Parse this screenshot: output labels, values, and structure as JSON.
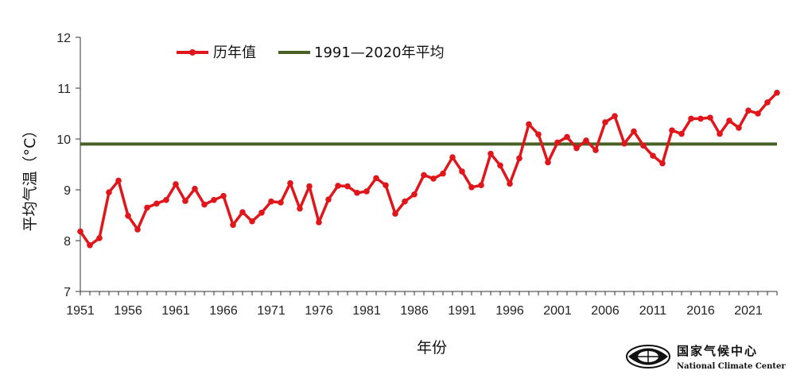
{
  "chart_data": {
    "type": "line",
    "title": "",
    "xlabel": "年份",
    "ylabel": "平均气温（°C）",
    "xlim": [
      1951,
      2024
    ],
    "ylim": [
      7,
      12
    ],
    "yticks": [
      "7",
      "8",
      "9",
      "10",
      "11",
      "12"
    ],
    "xticks": [
      "1951",
      "1956",
      "1961",
      "1966",
      "1971",
      "1976",
      "1981",
      "1986",
      "1991",
      "1996",
      "2001",
      "2006",
      "2011",
      "2016",
      "2021"
    ],
    "legend_position": "top-left",
    "grid": false,
    "series": [
      {
        "name": "历年值",
        "color": "#e0161b",
        "marker": "circle",
        "x": [
          1951,
          1952,
          1953,
          1954,
          1955,
          1956,
          1957,
          1958,
          1959,
          1960,
          1961,
          1962,
          1963,
          1964,
          1965,
          1966,
          1967,
          1968,
          1969,
          1970,
          1971,
          1972,
          1973,
          1974,
          1975,
          1976,
          1977,
          1978,
          1979,
          1980,
          1981,
          1982,
          1983,
          1984,
          1985,
          1986,
          1987,
          1988,
          1989,
          1990,
          1991,
          1992,
          1993,
          1994,
          1995,
          1996,
          1997,
          1998,
          1999,
          2000,
          2001,
          2002,
          2003,
          2004,
          2005,
          2006,
          2007,
          2008,
          2009,
          2010,
          2011,
          2012,
          2013,
          2014,
          2015,
          2016,
          2017,
          2018,
          2019,
          2020,
          2021,
          2022,
          2023,
          2024
        ],
        "values": [
          8.18,
          7.91,
          8.05,
          8.95,
          9.18,
          8.49,
          8.22,
          8.65,
          8.73,
          8.8,
          9.11,
          8.78,
          9.02,
          8.71,
          8.8,
          8.88,
          8.31,
          8.56,
          8.38,
          8.55,
          8.77,
          8.75,
          9.13,
          8.63,
          9.07,
          8.36,
          8.81,
          9.08,
          9.07,
          8.94,
          8.97,
          9.23,
          9.09,
          8.53,
          8.77,
          8.91,
          9.29,
          9.22,
          9.32,
          9.64,
          9.36,
          9.05,
          9.09,
          9.71,
          9.48,
          9.12,
          9.62,
          10.29,
          10.09,
          9.54,
          9.93,
          10.04,
          9.82,
          9.97,
          9.78,
          10.33,
          10.45,
          9.91,
          10.15,
          9.87,
          9.67,
          9.52,
          10.17,
          10.1,
          10.4,
          10.4,
          10.42,
          10.1,
          10.36,
          10.22,
          10.56,
          10.5,
          10.72,
          10.91
        ]
      },
      {
        "name": "1991—2020年平均",
        "color": "#4a6125",
        "marker": "none",
        "x": [
          1951,
          2024
        ],
        "values": [
          9.9,
          9.9
        ]
      }
    ]
  },
  "logo": {
    "cn": "国家气候中心",
    "en": "National Climate Center"
  }
}
